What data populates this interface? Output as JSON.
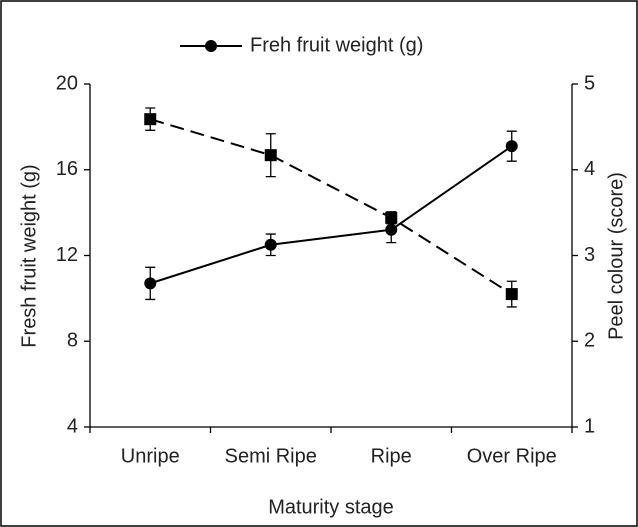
{
  "chart_data": {
    "type": "line",
    "xlabel": "Maturity stage",
    "ylabel": "Fresh fruit weight (g)",
    "y2label": "Peel colour (score)",
    "categories": [
      "Unripe",
      "Semi Ripe",
      "Ripe",
      "Over Ripe"
    ],
    "ylim": [
      4,
      20
    ],
    "yticks": [
      4,
      8,
      12,
      16,
      20
    ],
    "y2lim": [
      1,
      5
    ],
    "y2ticks": [
      1,
      2,
      3,
      4,
      5
    ],
    "legend": "top",
    "series": [
      {
        "name": "Freh fruit weight (g)",
        "color": "#000000",
        "marker": "circle",
        "dash": "solid",
        "values": [
          10.7,
          12.5,
          13.2,
          17.1
        ],
        "errors": [
          0.75,
          0.5,
          0.6,
          0.7
        ]
      },
      {
        "color": "#000000",
        "marker": "square",
        "dash": "dashed",
        "axis": "y2",
        "values": [
          4.59,
          4.17,
          3.44,
          2.55
        ],
        "errors": [
          0.13,
          0.25,
          0.07,
          0.15
        ]
      }
    ]
  }
}
